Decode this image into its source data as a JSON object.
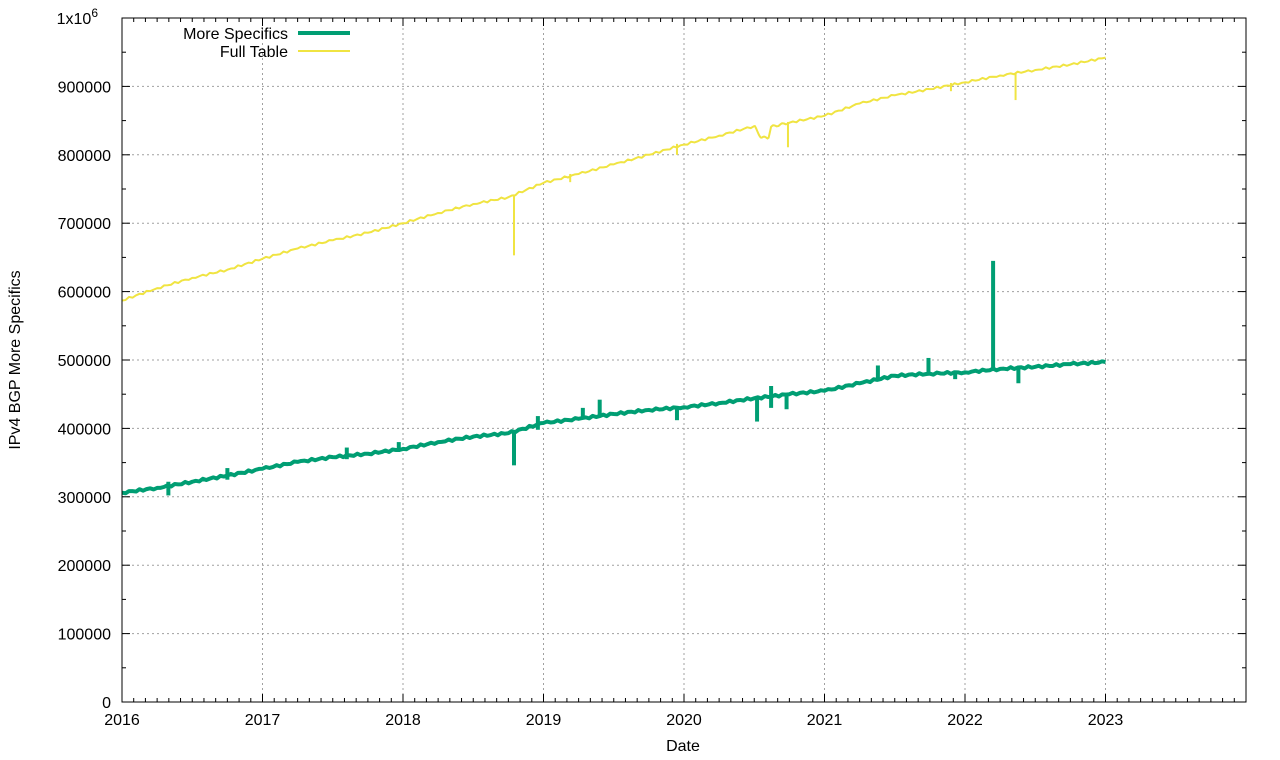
{
  "chart_data": {
    "type": "line",
    "xlabel": "Date",
    "ylabel": "IPv4 BGP More Specifics",
    "xlim": [
      2016,
      2024
    ],
    "ylim": [
      0,
      1000000
    ],
    "x_ticks": [
      "2016",
      "2017",
      "2018",
      "2019",
      "2020",
      "2021",
      "2022",
      "2023"
    ],
    "y_ticks": [
      {
        "value": 0,
        "label": "0"
      },
      {
        "value": 100000,
        "label": "100000"
      },
      {
        "value": 200000,
        "label": "200000"
      },
      {
        "value": 300000,
        "label": "300000"
      },
      {
        "value": 400000,
        "label": "400000"
      },
      {
        "value": 500000,
        "label": "500000"
      },
      {
        "value": 600000,
        "label": "600000"
      },
      {
        "value": 700000,
        "label": "700000"
      },
      {
        "value": 800000,
        "label": "800000"
      },
      {
        "value": 900000,
        "label": "900000"
      },
      {
        "value": 1000000,
        "label": "1x10",
        "superscript": "6"
      }
    ],
    "grid": true,
    "legend_position": "top-left",
    "series": [
      {
        "name": "More Specifics",
        "color": "#009e73",
        "x": [
          2016.0,
          2016.25,
          2016.5,
          2016.75,
          2017.0,
          2017.25,
          2017.5,
          2017.75,
          2018.0,
          2018.25,
          2018.5,
          2018.75,
          2019.0,
          2019.25,
          2019.5,
          2019.75,
          2020.0,
          2020.25,
          2020.5,
          2020.75,
          2021.0,
          2021.25,
          2021.5,
          2021.75,
          2022.0,
          2022.25,
          2022.5,
          2022.75,
          2023.0
        ],
        "values": [
          306000,
          313000,
          322000,
          331000,
          341000,
          351000,
          358000,
          363000,
          370000,
          380000,
          388000,
          393000,
          408000,
          414000,
          421000,
          427000,
          431000,
          437000,
          444000,
          450000,
          455000,
          466000,
          477000,
          480000,
          482000,
          487000,
          490000,
          494000,
          497000
        ],
        "spikes": [
          {
            "x": 2016.33,
            "low": 302000,
            "high": 322000
          },
          {
            "x": 2016.75,
            "low": 325000,
            "high": 342000
          },
          {
            "x": 2017.6,
            "low": 355000,
            "high": 372000
          },
          {
            "x": 2017.97,
            "low": 368000,
            "high": 380000
          },
          {
            "x": 2018.79,
            "low": 346000,
            "high": 397000
          },
          {
            "x": 2018.96,
            "low": 398000,
            "high": 418000
          },
          {
            "x": 2019.28,
            "low": 414000,
            "high": 430000
          },
          {
            "x": 2019.4,
            "low": 418000,
            "high": 442000
          },
          {
            "x": 2019.95,
            "low": 412000,
            "high": 432000
          },
          {
            "x": 2020.52,
            "low": 410000,
            "high": 445000
          },
          {
            "x": 2020.62,
            "low": 430000,
            "high": 462000
          },
          {
            "x": 2020.73,
            "low": 428000,
            "high": 452000
          },
          {
            "x": 2021.38,
            "low": 472000,
            "high": 492000
          },
          {
            "x": 2021.74,
            "low": 478000,
            "high": 503000
          },
          {
            "x": 2021.93,
            "low": 472000,
            "high": 484000
          },
          {
            "x": 2022.2,
            "low": 484000,
            "high": 645000
          },
          {
            "x": 2022.38,
            "low": 466000,
            "high": 490000
          }
        ]
      },
      {
        "name": "Full Table",
        "color": "#f0e442",
        "x": [
          2016.0,
          2016.25,
          2016.5,
          2016.75,
          2017.0,
          2017.25,
          2017.5,
          2017.75,
          2018.0,
          2018.25,
          2018.5,
          2018.75,
          2019.0,
          2019.25,
          2019.5,
          2019.75,
          2020.0,
          2020.25,
          2020.5,
          2020.55,
          2020.6,
          2020.62,
          2020.75,
          2021.0,
          2021.25,
          2021.5,
          2021.75,
          2022.0,
          2022.25,
          2022.5,
          2022.75,
          2023.0
        ],
        "values": [
          587000,
          605000,
          620000,
          632000,
          648000,
          663000,
          675000,
          686000,
          700000,
          715000,
          728000,
          738000,
          759000,
          772000,
          786000,
          800000,
          815000,
          828000,
          842000,
          825000,
          825000,
          841000,
          847000,
          857000,
          875000,
          887000,
          896000,
          906000,
          916000,
          924000,
          932000,
          942000
        ],
        "spikes": [
          {
            "x": 2018.79,
            "low": 653000,
            "high": 740000
          },
          {
            "x": 2019.19,
            "low": 760000,
            "high": 772000
          },
          {
            "x": 2019.95,
            "low": 800000,
            "high": 816000
          },
          {
            "x": 2020.74,
            "low": 811000,
            "high": 848000
          },
          {
            "x": 2021.9,
            "low": 893000,
            "high": 905000
          },
          {
            "x": 2022.36,
            "low": 880000,
            "high": 920000
          }
        ]
      }
    ]
  }
}
